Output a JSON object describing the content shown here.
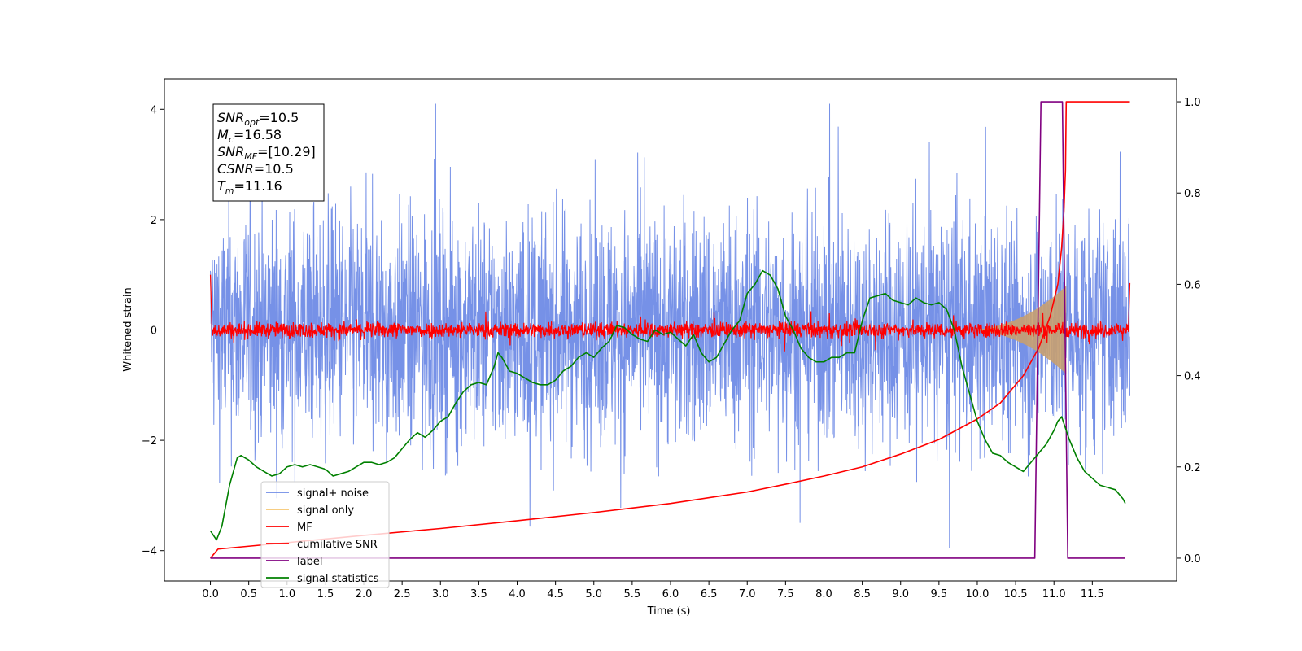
{
  "chart_data": {
    "type": "line",
    "xlabel": "Time (s)",
    "ylabel": "Whitened strain",
    "xlim": [
      -0.6,
      12.6
    ],
    "ylim": [
      -4.55,
      4.55
    ],
    "y2lim": [
      -0.05,
      1.05
    ],
    "x_ticks": [
      "0.0",
      "0.5",
      "1.0",
      "1.5",
      "2.0",
      "2.5",
      "3.0",
      "3.5",
      "4.0",
      "4.5",
      "5.0",
      "5.5",
      "6.0",
      "6.5",
      "7.0",
      "7.5",
      "8.0",
      "8.5",
      "9.0",
      "9.5",
      "10.0",
      "10.5",
      "11.0",
      "11.5"
    ],
    "y_ticks": [
      "4",
      "2",
      "0",
      "−2",
      "−4"
    ],
    "y2_ticks": [
      "1.0",
      "0.8",
      "0.6",
      "0.4",
      "0.2",
      "0.0"
    ],
    "info_box": [
      {
        "base": "SNR",
        "sub": "opt",
        "rest": "=10.5"
      },
      {
        "base": "M",
        "sub": "c",
        "rest": "=16.58"
      },
      {
        "base": "SNR",
        "sub": "MF",
        "rest": "=[10.29]"
      },
      {
        "base": "CSNR",
        "sub": "",
        "rest": "=10.5"
      },
      {
        "base": "T",
        "sub": "m",
        "rest": "=11.16"
      }
    ],
    "legend_position": "lower-left",
    "legend": [
      {
        "label": "signal+ noise",
        "color": "#6f8be6"
      },
      {
        "label": "signal only",
        "color": "#f6c66f"
      },
      {
        "label": "MF",
        "color": "#ff0000"
      },
      {
        "label": "cumilative SNR",
        "color": "#ff0000"
      },
      {
        "label": "label",
        "color": "#800080"
      },
      {
        "label": "signal statistics",
        "color": "#008000"
      }
    ],
    "series": [
      {
        "name": "signal+ noise",
        "axis": "left",
        "color": "#6f8be6",
        "style": "noise band",
        "t_range": [
          0.0,
          11.99
        ],
        "envelope_y": [
          -2.5,
          2.5
        ],
        "max_spike": 4.1,
        "min_spike": -4.1
      },
      {
        "name": "signal only",
        "axis": "left",
        "color": "#c8a070",
        "style": "chirp envelope",
        "t_start": 9.8,
        "t_merge": 11.16,
        "peak_amplitude": 0.8
      },
      {
        "name": "MF",
        "axis": "left",
        "color": "#ff0000",
        "style": "noise band",
        "t_range": [
          0.0,
          11.99
        ],
        "envelope_y": [
          -0.12,
          0.12
        ],
        "start_value": 1.0,
        "end_value": 0.85
      },
      {
        "name": "cumilative SNR",
        "axis": "right",
        "color": "#ff0000",
        "x": [
          0.0,
          0.1,
          1.0,
          2.0,
          3.0,
          4.0,
          5.0,
          6.0,
          7.0,
          7.5,
          8.0,
          8.5,
          9.0,
          9.5,
          10.0,
          10.3,
          10.6,
          10.8,
          10.95,
          11.05,
          11.1,
          11.13,
          11.15,
          11.16,
          11.99
        ],
        "y": [
          0.0,
          0.02,
          0.034,
          0.05,
          0.065,
          0.082,
          0.1,
          0.12,
          0.145,
          0.162,
          0.18,
          0.2,
          0.228,
          0.26,
          0.305,
          0.34,
          0.4,
          0.46,
          0.53,
          0.6,
          0.68,
          0.76,
          0.85,
          1.0,
          1.0
        ]
      },
      {
        "name": "label",
        "axis": "right",
        "color": "#800080",
        "x": [
          0.0,
          10.75,
          10.83,
          11.11,
          11.18,
          11.93
        ],
        "y": [
          0.0,
          0.0,
          1.0,
          1.0,
          0.0,
          0.0
        ]
      },
      {
        "name": "signal statistics",
        "axis": "right",
        "color": "#008000",
        "x": [
          0.0,
          0.08,
          0.15,
          0.25,
          0.35,
          0.4,
          0.5,
          0.6,
          0.7,
          0.8,
          0.9,
          1.0,
          1.1,
          1.2,
          1.3,
          1.4,
          1.5,
          1.6,
          1.7,
          1.8,
          1.9,
          2.0,
          2.1,
          2.2,
          2.3,
          2.4,
          2.5,
          2.6,
          2.7,
          2.8,
          2.9,
          3.0,
          3.1,
          3.2,
          3.3,
          3.4,
          3.5,
          3.6,
          3.7,
          3.75,
          3.8,
          3.9,
          4.0,
          4.1,
          4.2,
          4.3,
          4.4,
          4.5,
          4.6,
          4.7,
          4.8,
          4.9,
          5.0,
          5.1,
          5.2,
          5.3,
          5.4,
          5.5,
          5.6,
          5.7,
          5.8,
          5.9,
          6.0,
          6.1,
          6.2,
          6.3,
          6.4,
          6.5,
          6.6,
          6.7,
          6.8,
          6.9,
          7.0,
          7.1,
          7.2,
          7.3,
          7.4,
          7.5,
          7.6,
          7.7,
          7.8,
          7.9,
          8.0,
          8.1,
          8.2,
          8.3,
          8.4,
          8.5,
          8.6,
          8.7,
          8.8,
          8.9,
          9.0,
          9.1,
          9.2,
          9.3,
          9.4,
          9.5,
          9.6,
          9.7,
          9.8,
          9.9,
          10.0,
          10.1,
          10.2,
          10.3,
          10.4,
          10.5,
          10.6,
          10.7,
          10.8,
          10.9,
          11.0,
          11.05,
          11.1,
          11.2,
          11.3,
          11.4,
          11.5,
          11.6,
          11.7,
          11.8,
          11.9,
          11.93
        ],
        "y": [
          0.06,
          0.04,
          0.07,
          0.16,
          0.22,
          0.225,
          0.215,
          0.2,
          0.19,
          0.18,
          0.185,
          0.2,
          0.205,
          0.2,
          0.205,
          0.2,
          0.195,
          0.18,
          0.185,
          0.19,
          0.2,
          0.21,
          0.21,
          0.205,
          0.21,
          0.22,
          0.24,
          0.26,
          0.275,
          0.265,
          0.28,
          0.3,
          0.31,
          0.34,
          0.365,
          0.38,
          0.385,
          0.38,
          0.42,
          0.45,
          0.44,
          0.41,
          0.405,
          0.395,
          0.385,
          0.38,
          0.38,
          0.39,
          0.41,
          0.42,
          0.44,
          0.45,
          0.44,
          0.46,
          0.475,
          0.51,
          0.505,
          0.49,
          0.48,
          0.475,
          0.5,
          0.49,
          0.495,
          0.48,
          0.465,
          0.49,
          0.45,
          0.43,
          0.44,
          0.47,
          0.5,
          0.52,
          0.58,
          0.6,
          0.63,
          0.62,
          0.59,
          0.53,
          0.5,
          0.46,
          0.44,
          0.43,
          0.43,
          0.44,
          0.44,
          0.45,
          0.45,
          0.52,
          0.57,
          0.575,
          0.58,
          0.565,
          0.56,
          0.555,
          0.57,
          0.56,
          0.555,
          0.56,
          0.545,
          0.5,
          0.42,
          0.36,
          0.3,
          0.26,
          0.23,
          0.225,
          0.21,
          0.2,
          0.19,
          0.21,
          0.23,
          0.25,
          0.28,
          0.3,
          0.31,
          0.26,
          0.22,
          0.19,
          0.175,
          0.16,
          0.155,
          0.15,
          0.13,
          0.12
        ]
      }
    ]
  }
}
